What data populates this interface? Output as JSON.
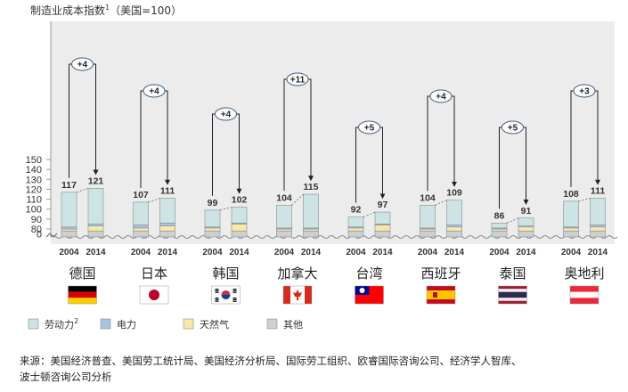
{
  "title": "制造业成本指数",
  "title_sup": "1",
  "title_suffix": "（美国=100）",
  "source_text": "来源：美国经济普查、美国劳工统计局、美国经济分析局、国际劳工组织、欧睿国际咨询公司、经济学人智库、波士顿咨询公司分析",
  "chart_data": {
    "type": "bar",
    "stacked": true,
    "title": "制造业成本指数（美国=100）",
    "ylim": [
      75,
      150
    ],
    "yticks": [
      80,
      90,
      100,
      110,
      120,
      130,
      140,
      150
    ],
    "axis_break": true,
    "x_sub_labels": [
      "2004",
      "2014"
    ],
    "grid": false,
    "legend_position": "bottom",
    "components": [
      {
        "name": "劳动力",
        "sup": "2",
        "color": "#cde3e4"
      },
      {
        "name": "电力",
        "color": "#a9c3df"
      },
      {
        "name": "天然气",
        "color": "#fbe7a6"
      },
      {
        "name": "其他",
        "color": "#cfcfcf"
      }
    ],
    "categories": [
      {
        "name": "德国",
        "flag": "germany-flag",
        "totals": [
          117,
          121
        ],
        "delta": "+4",
        "breakdown": {
          "2004": {
            "其他": 3,
            "天然气": 2,
            "电力": 2,
            "劳动力": 35
          },
          "2014": {
            "其他": 3,
            "天然气": 5,
            "电力": 2,
            "劳动力": 36
          }
        }
      },
      {
        "name": "日本",
        "flag": "japan-flag",
        "totals": [
          107,
          111
        ],
        "delta": "+4",
        "breakdown": {
          "2004": {
            "其他": 3,
            "天然气": 3,
            "电力": 3,
            "劳动力": 23
          },
          "2014": {
            "其他": 3,
            "天然气": 5,
            "电力": 3,
            "劳动力": 25
          }
        }
      },
      {
        "name": "韩国",
        "flag": "south-korea-flag",
        "totals": [
          99,
          102
        ],
        "delta": "+4",
        "breakdown": {
          "2004": {
            "其他": 3,
            "天然气": 3,
            "电力": 1,
            "劳动力": 17
          },
          "2014": {
            "其他": 3,
            "天然气": 7,
            "电力": 1,
            "劳动力": 16
          }
        }
      },
      {
        "name": "加拿大",
        "flag": "canada-flag",
        "totals": [
          104,
          115
        ],
        "delta": "+11",
        "breakdown": {
          "2004": {
            "其他": 3,
            "天然气": 2,
            "电力": 1,
            "劳动力": 23
          },
          "2014": {
            "其他": 3,
            "天然气": 2,
            "电力": 1,
            "劳动力": 34
          }
        }
      },
      {
        "name": "台湾",
        "flag": "taiwan-flag",
        "totals": [
          92,
          97
        ],
        "delta": "+5",
        "breakdown": {
          "2004": {
            "其他": 3,
            "天然气": 3,
            "电力": 1,
            "劳动力": 10
          },
          "2014": {
            "其他": 3,
            "天然气": 6,
            "电力": 1,
            "劳动力": 12
          }
        }
      },
      {
        "name": "西班牙",
        "flag": "spain-flag",
        "totals": [
          104,
          109
        ],
        "delta": "+4",
        "breakdown": {
          "2004": {
            "其他": 3,
            "天然气": 2,
            "电力": 1,
            "劳动力": 23
          },
          "2014": {
            "其他": 3,
            "天然气": 4,
            "电力": 2,
            "劳动力": 25
          }
        }
      },
      {
        "name": "泰国",
        "flag": "thailand-flag",
        "totals": [
          86,
          91
        ],
        "delta": "+5",
        "breakdown": {
          "2004": {
            "其他": 3,
            "天然气": 2,
            "电力": 1,
            "劳动力": 5
          },
          "2014": {
            "其他": 3,
            "天然气": 4,
            "电力": 1,
            "劳动力": 8
          }
        }
      },
      {
        "name": "奥地利",
        "flag": "austria-flag",
        "totals": [
          108,
          111
        ],
        "delta": "+3",
        "breakdown": {
          "2004": {
            "其他": 3,
            "天然气": 3,
            "电力": 1,
            "劳动力": 26
          },
          "2014": {
            "其他": 3,
            "天然气": 4,
            "电力": 2,
            "劳动力": 27
          }
        }
      }
    ]
  }
}
